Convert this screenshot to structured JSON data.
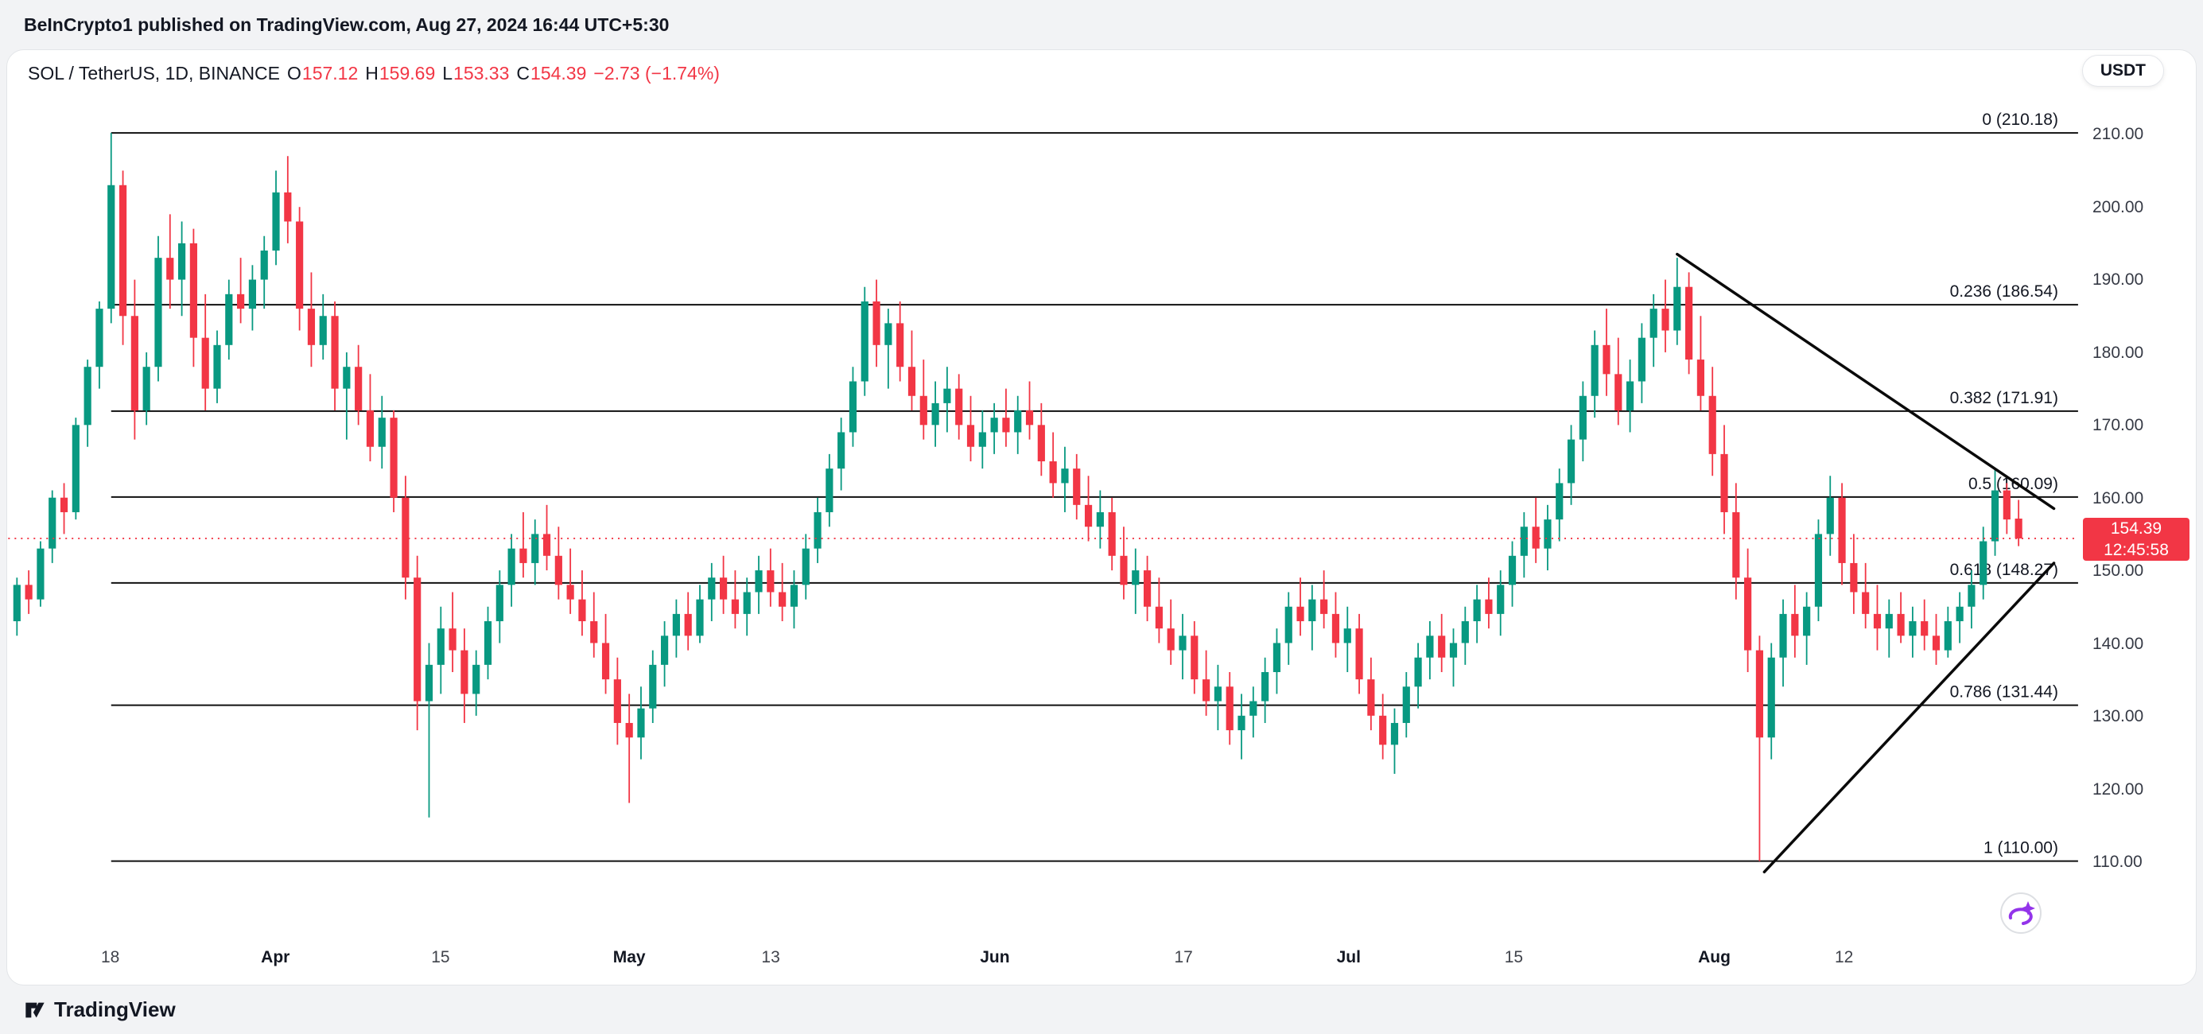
{
  "header": {
    "publish_line": "BeInCrypto1 published on TradingView.com, Aug 27, 2024 16:44 UTC+5:30"
  },
  "legend": {
    "title": "SOL / TetherUS, 1D, BINANCE",
    "o_label": "O",
    "o_value": "157.12",
    "h_label": "H",
    "h_value": "159.69",
    "l_label": "L",
    "l_value": "153.33",
    "c_label": "C",
    "c_value": "154.39",
    "change": "−2.73 (−1.74%)"
  },
  "currency_button": {
    "label": "USDT"
  },
  "price_axis": {
    "last_price": "154.39",
    "countdown": "12:45:58"
  },
  "footer": {
    "brand": "TradingView"
  },
  "chart_data": {
    "type": "candlestick",
    "title": "SOL / TetherUS, 1D, BINANCE",
    "symbol": "SOL / TetherUS",
    "interval": "1D",
    "exchange": "BINANCE",
    "ohlc_last": {
      "open": 157.12,
      "high": 159.69,
      "low": 153.33,
      "close": 154.39,
      "change": -2.73,
      "change_pct": -1.74
    },
    "last_price": 154.39,
    "countdown": "12:45:58",
    "ylim": [
      110,
      210
    ],
    "price_ticks": [
      210,
      200,
      190,
      180,
      170,
      160,
      150,
      140,
      130,
      120,
      110
    ],
    "time_ticks": [
      {
        "label": "18",
        "index": 8,
        "major": false
      },
      {
        "label": "Apr",
        "index": 22,
        "major": true
      },
      {
        "label": "15",
        "index": 36,
        "major": false
      },
      {
        "label": "May",
        "index": 52,
        "major": true
      },
      {
        "label": "13",
        "index": 64,
        "major": false
      },
      {
        "label": "Jun",
        "index": 83,
        "major": true
      },
      {
        "label": "17",
        "index": 99,
        "major": false
      },
      {
        "label": "Jul",
        "index": 113,
        "major": true
      },
      {
        "label": "15",
        "index": 127,
        "major": false
      },
      {
        "label": "Aug",
        "index": 144,
        "major": true
      },
      {
        "label": "12",
        "index": 155,
        "major": false
      }
    ],
    "fib_start_index": 8,
    "fib_levels": [
      {
        "label": "0 (210.18)",
        "price": 210.18
      },
      {
        "label": "0.236 (186.54)",
        "price": 186.54
      },
      {
        "label": "0.382 (171.91)",
        "price": 171.91
      },
      {
        "label": "0.5 (160.09)",
        "price": 160.09
      },
      {
        "label": "0.618 (148.27)",
        "price": 148.27
      },
      {
        "label": "0.786 (131.44)",
        "price": 131.44
      },
      {
        "label": "1 (110.00)",
        "price": 110.0
      }
    ],
    "trendlines": [
      {
        "x1": 141,
        "p1": 193.5,
        "x2": 173,
        "p2": 158.5
      },
      {
        "x1": 148.4,
        "p1": 108.5,
        "x2": 173,
        "p2": 151.0
      }
    ],
    "colors": {
      "up": "#089981",
      "down": "#f23645",
      "level_line": "#101010",
      "trend_line": "#0a0a0a",
      "text": "#131722",
      "purple": "#9334ea"
    },
    "candles": [
      [
        143,
        149,
        141,
        148
      ],
      [
        148,
        150,
        144,
        146
      ],
      [
        146,
        154,
        145,
        153
      ],
      [
        153,
        161,
        151,
        160
      ],
      [
        160,
        162,
        155,
        158
      ],
      [
        158,
        171,
        157,
        170
      ],
      [
        170,
        179,
        167,
        178
      ],
      [
        178,
        187,
        175,
        186
      ],
      [
        186,
        210.18,
        184,
        203
      ],
      [
        203,
        205,
        181,
        185
      ],
      [
        185,
        190,
        168,
        172
      ],
      [
        172,
        180,
        170,
        178
      ],
      [
        178,
        196,
        176,
        193
      ],
      [
        193,
        199,
        186,
        190
      ],
      [
        190,
        198,
        185,
        195
      ],
      [
        195,
        197,
        178,
        182
      ],
      [
        182,
        188,
        172,
        175
      ],
      [
        175,
        183,
        173,
        181
      ],
      [
        181,
        190,
        179,
        188
      ],
      [
        188,
        193,
        184,
        186
      ],
      [
        186,
        192,
        183,
        190
      ],
      [
        190,
        196,
        186,
        194
      ],
      [
        194,
        205,
        192,
        202
      ],
      [
        202,
        207,
        195,
        198
      ],
      [
        198,
        200,
        183,
        186
      ],
      [
        186,
        191,
        178,
        181
      ],
      [
        181,
        188,
        179,
        185
      ],
      [
        185,
        187,
        172,
        175
      ],
      [
        175,
        180,
        168,
        178
      ],
      [
        178,
        181,
        170,
        172
      ],
      [
        172,
        177,
        165,
        167
      ],
      [
        167,
        174,
        164,
        171
      ],
      [
        171,
        172,
        158,
        160
      ],
      [
        160,
        163,
        146,
        149
      ],
      [
        149,
        152,
        128,
        132
      ],
      [
        132,
        140,
        116,
        137
      ],
      [
        137,
        145,
        133,
        142
      ],
      [
        142,
        147,
        136,
        139
      ],
      [
        139,
        142,
        129,
        133
      ],
      [
        133,
        139,
        130,
        137
      ],
      [
        137,
        145,
        135,
        143
      ],
      [
        143,
        150,
        140,
        148
      ],
      [
        148,
        155,
        145,
        153
      ],
      [
        153,
        158,
        149,
        151
      ],
      [
        151,
        157,
        148,
        155
      ],
      [
        155,
        159,
        150,
        152
      ],
      [
        152,
        156,
        146,
        148
      ],
      [
        148,
        153,
        144,
        146
      ],
      [
        146,
        150,
        141,
        143
      ],
      [
        143,
        147,
        138,
        140
      ],
      [
        140,
        144,
        133,
        135
      ],
      [
        135,
        138,
        126,
        129
      ],
      [
        129,
        133,
        118,
        127
      ],
      [
        127,
        134,
        124,
        131
      ],
      [
        131,
        139,
        129,
        137
      ],
      [
        137,
        143,
        134,
        141
      ],
      [
        141,
        146,
        138,
        144
      ],
      [
        144,
        147,
        139,
        141
      ],
      [
        141,
        148,
        140,
        146
      ],
      [
        146,
        151,
        143,
        149
      ],
      [
        149,
        152,
        144,
        146
      ],
      [
        146,
        150,
        142,
        144
      ],
      [
        144,
        149,
        141,
        147
      ],
      [
        147,
        152,
        144,
        150
      ],
      [
        150,
        153,
        145,
        147
      ],
      [
        147,
        151,
        143,
        145
      ],
      [
        145,
        150,
        142,
        148
      ],
      [
        148,
        155,
        146,
        153
      ],
      [
        153,
        160,
        151,
        158
      ],
      [
        158,
        166,
        156,
        164
      ],
      [
        164,
        171,
        161,
        169
      ],
      [
        169,
        178,
        167,
        176
      ],
      [
        176,
        189,
        174,
        187
      ],
      [
        187,
        190,
        178,
        181
      ],
      [
        181,
        186,
        175,
        184
      ],
      [
        184,
        187,
        176,
        178
      ],
      [
        178,
        183,
        172,
        174
      ],
      [
        174,
        179,
        168,
        170
      ],
      [
        170,
        176,
        167,
        173
      ],
      [
        173,
        178,
        169,
        175
      ],
      [
        175,
        177,
        168,
        170
      ],
      [
        170,
        174,
        165,
        167
      ],
      [
        167,
        172,
        164,
        169
      ],
      [
        169,
        173,
        166,
        171
      ],
      [
        171,
        175,
        167,
        169
      ],
      [
        169,
        174,
        166,
        172
      ],
      [
        172,
        176,
        168,
        170
      ],
      [
        170,
        173,
        163,
        165
      ],
      [
        165,
        169,
        160,
        162
      ],
      [
        162,
        167,
        158,
        164
      ],
      [
        164,
        166,
        157,
        159
      ],
      [
        159,
        163,
        154,
        156
      ],
      [
        156,
        161,
        153,
        158
      ],
      [
        158,
        160,
        150,
        152
      ],
      [
        152,
        156,
        146,
        148
      ],
      [
        148,
        153,
        144,
        150
      ],
      [
        150,
        152,
        143,
        145
      ],
      [
        145,
        149,
        140,
        142
      ],
      [
        142,
        146,
        137,
        139
      ],
      [
        139,
        144,
        135,
        141
      ],
      [
        141,
        143,
        133,
        135
      ],
      [
        135,
        139,
        130,
        132
      ],
      [
        132,
        137,
        128,
        134
      ],
      [
        134,
        136,
        126,
        128
      ],
      [
        128,
        133,
        124,
        130
      ],
      [
        130,
        134,
        127,
        132
      ],
      [
        132,
        138,
        129,
        136
      ],
      [
        136,
        142,
        133,
        140
      ],
      [
        140,
        147,
        137,
        145
      ],
      [
        145,
        149,
        141,
        143
      ],
      [
        143,
        148,
        139,
        146
      ],
      [
        146,
        150,
        142,
        144
      ],
      [
        144,
        147,
        138,
        140
      ],
      [
        140,
        145,
        136,
        142
      ],
      [
        142,
        144,
        133,
        135
      ],
      [
        135,
        138,
        128,
        130
      ],
      [
        130,
        133,
        124,
        126
      ],
      [
        126,
        131,
        122,
        129
      ],
      [
        129,
        136,
        127,
        134
      ],
      [
        134,
        140,
        131,
        138
      ],
      [
        138,
        143,
        135,
        141
      ],
      [
        141,
        144,
        136,
        138
      ],
      [
        138,
        142,
        134,
        140
      ],
      [
        140,
        145,
        137,
        143
      ],
      [
        143,
        148,
        140,
        146
      ],
      [
        146,
        149,
        142,
        144
      ],
      [
        144,
        150,
        141,
        148
      ],
      [
        148,
        154,
        145,
        152
      ],
      [
        152,
        158,
        149,
        156
      ],
      [
        156,
        160,
        151,
        153
      ],
      [
        153,
        159,
        150,
        157
      ],
      [
        157,
        164,
        154,
        162
      ],
      [
        162,
        170,
        159,
        168
      ],
      [
        168,
        176,
        165,
        174
      ],
      [
        174,
        183,
        171,
        181
      ],
      [
        181,
        186,
        174,
        177
      ],
      [
        177,
        182,
        170,
        172
      ],
      [
        172,
        179,
        169,
        176
      ],
      [
        176,
        184,
        173,
        182
      ],
      [
        182,
        188,
        178,
        186
      ],
      [
        186,
        190,
        180,
        183
      ],
      [
        183,
        193,
        181,
        189
      ],
      [
        189,
        191,
        177,
        179
      ],
      [
        179,
        185,
        172,
        174
      ],
      [
        174,
        178,
        163,
        166
      ],
      [
        166,
        170,
        155,
        158
      ],
      [
        158,
        162,
        146,
        149
      ],
      [
        149,
        153,
        136,
        139
      ],
      [
        139,
        141,
        110,
        127
      ],
      [
        127,
        140,
        124,
        138
      ],
      [
        138,
        146,
        134,
        144
      ],
      [
        144,
        148,
        138,
        141
      ],
      [
        141,
        147,
        137,
        145
      ],
      [
        145,
        157,
        143,
        155
      ],
      [
        155,
        163,
        152,
        160
      ],
      [
        160,
        162,
        148,
        151
      ],
      [
        151,
        155,
        144,
        147
      ],
      [
        147,
        151,
        142,
        144
      ],
      [
        144,
        148,
        139,
        142
      ],
      [
        142,
        146,
        138,
        144
      ],
      [
        144,
        147,
        140,
        141
      ],
      [
        141,
        145,
        138,
        143
      ],
      [
        143,
        146,
        139,
        141
      ],
      [
        141,
        144,
        137,
        139
      ],
      [
        139,
        145,
        138,
        143
      ],
      [
        143,
        147,
        140,
        145
      ],
      [
        145,
        150,
        142,
        148
      ],
      [
        148,
        156,
        146,
        154
      ],
      [
        154,
        164,
        152,
        161
      ],
      [
        161,
        162,
        155,
        157
      ],
      [
        157.12,
        159.69,
        153.33,
        154.39
      ]
    ]
  }
}
